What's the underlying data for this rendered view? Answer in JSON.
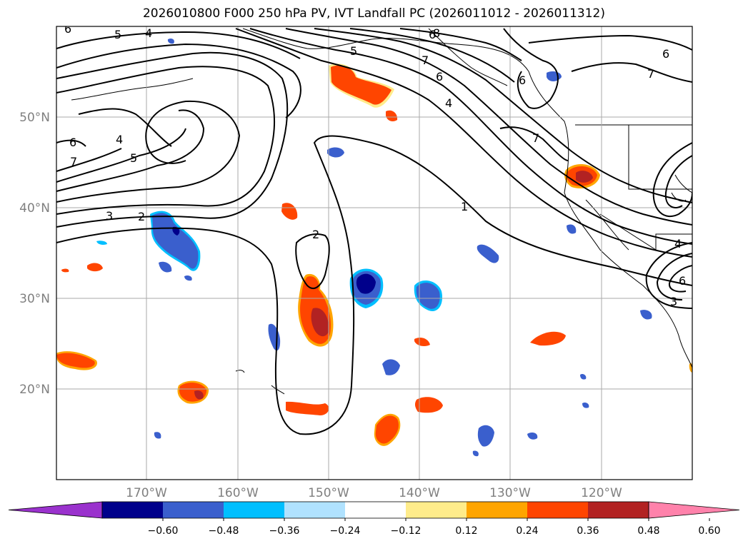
{
  "title": "2026010800 F000 250 hPa PV, IVT Landfall PC (2026011012 - 2026011312)",
  "axes": {
    "lat_labels": [
      "50°N",
      "40°N",
      "30°N",
      "20°N"
    ],
    "lon_labels": [
      "170°W",
      "160°W",
      "150°W",
      "140°W",
      "130°W",
      "120°W"
    ]
  },
  "contour_labels": [
    "6",
    "5",
    "4",
    "8",
    "5",
    "7",
    "6",
    "4",
    "6",
    "6",
    "7",
    "7",
    "6",
    "4",
    "5",
    "6",
    "7",
    "3",
    "2",
    "2",
    "1",
    "4",
    "6",
    "3"
  ],
  "colorbar": {
    "ticks": [
      "−0.60",
      "−0.48",
      "−0.36",
      "−0.24",
      "−0.12",
      "0.12",
      "0.24",
      "0.36",
      "0.48",
      "0.60"
    ],
    "colors": [
      "#9a32cd",
      "#00008b",
      "#3a5fcd",
      "#00bfff",
      "#b0e2ff",
      "#ffffff",
      "#ffec8b",
      "#ffa500",
      "#ff4500",
      "#b22222",
      "#ff82ab"
    ]
  }
}
